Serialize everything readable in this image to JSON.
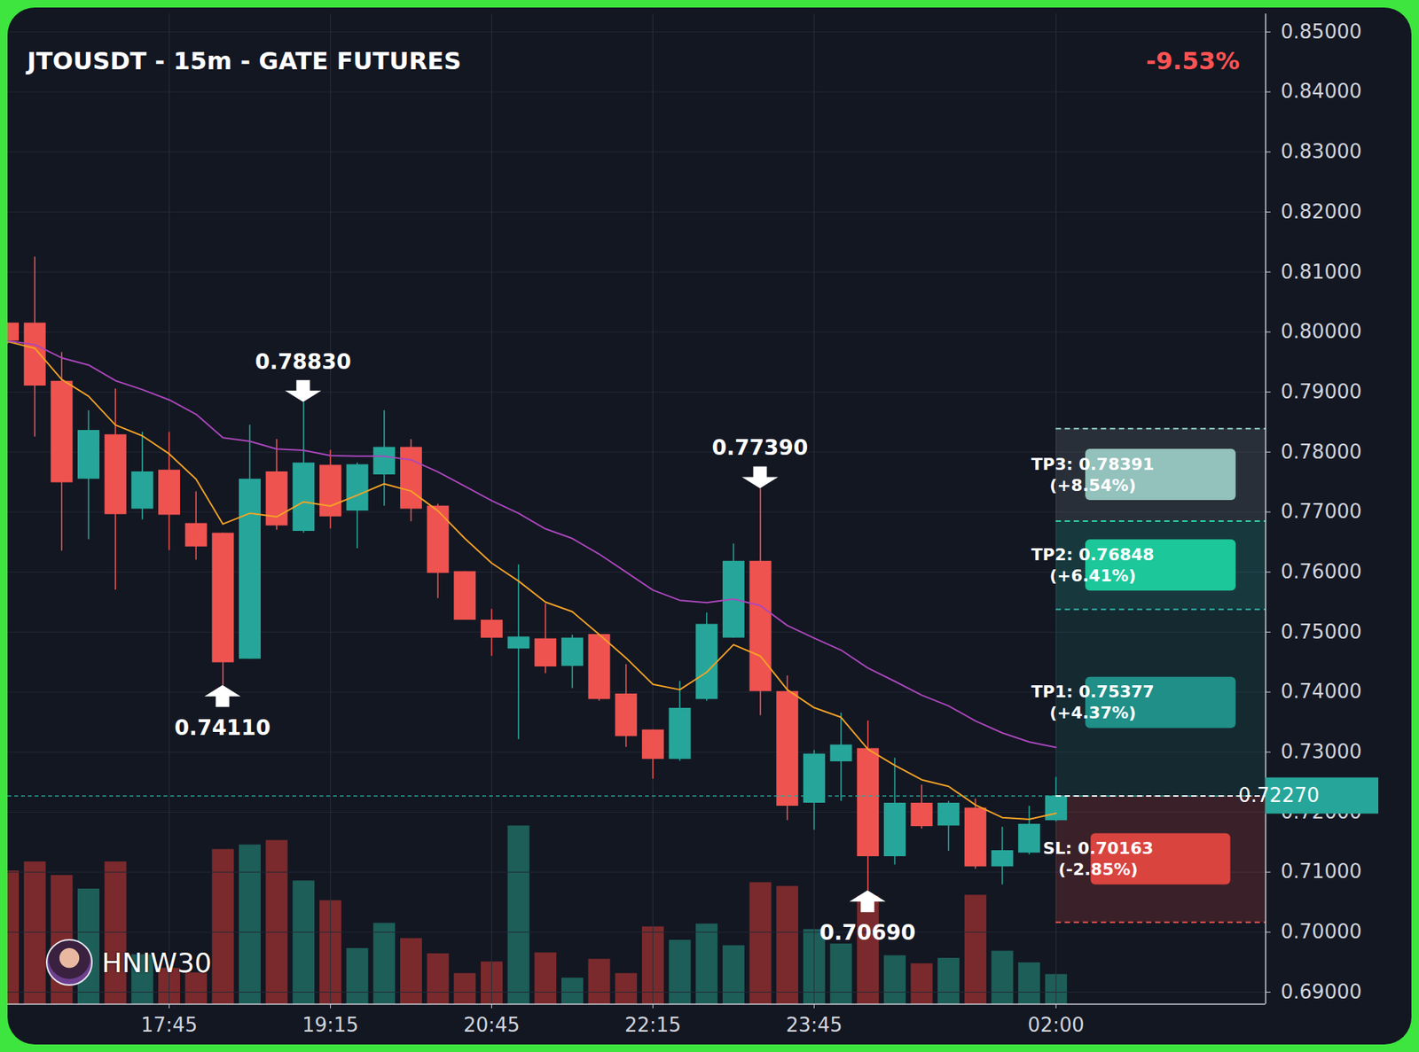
{
  "chart_data": {
    "type": "candlestick",
    "title": "JTOUSDT - 15m - GATE FUTURES",
    "change": -9.53,
    "change_label": "-9.53%",
    "x": [
      16.25,
      16.5,
      16.75,
      17,
      17.25,
      17.5,
      17.75,
      18,
      18.25,
      18.5,
      18.75,
      19,
      19.25,
      19.5,
      19.75,
      20,
      20.25,
      20.5,
      20.75,
      21,
      21.25,
      21.5,
      21.75,
      22,
      22.25,
      22.5,
      22.75,
      23,
      23.25,
      23.5,
      23.75,
      24,
      24.25,
      24.5,
      24.75,
      25,
      25.25,
      25.5,
      25.75,
      26
    ],
    "open": [
      0.8015,
      0.8015,
      0.7918,
      0.7755,
      0.7829,
      0.7705,
      0.777,
      0.7681,
      0.7665,
      0.7455,
      0.7767,
      0.7668,
      0.7778,
      0.7702,
      0.7762,
      0.7808,
      0.771,
      0.7601,
      0.752,
      0.7472,
      0.7489,
      0.7443,
      0.7496,
      0.7397,
      0.7337,
      0.7288,
      0.7388,
      0.749,
      0.7618,
      0.7401,
      0.7215,
      0.7284,
      0.7306,
      0.7126,
      0.7215,
      0.7177,
      0.7207,
      0.7109,
      0.7132,
      0.7186
    ],
    "high": [
      0.8015,
      0.8125,
      0.7966,
      0.7869,
      0.7905,
      0.7833,
      0.7833,
      0.7734,
      0.7665,
      0.7845,
      0.7821,
      0.7883,
      0.7803,
      0.7782,
      0.7869,
      0.7821,
      0.7713,
      0.7601,
      0.7538,
      0.7612,
      0.7547,
      0.7495,
      0.7496,
      0.7446,
      0.7337,
      0.7418,
      0.7532,
      0.7647,
      0.7739,
      0.7427,
      0.7303,
      0.7365,
      0.7352,
      0.729,
      0.7245,
      0.7218,
      0.7222,
      0.7175,
      0.721,
      0.7258
    ],
    "low": [
      0.798,
      0.7825,
      0.7635,
      0.7654,
      0.757,
      0.7687,
      0.7636,
      0.762,
      0.7411,
      0.7455,
      0.767,
      0.7665,
      0.7672,
      0.7639,
      0.771,
      0.7684,
      0.7556,
      0.752,
      0.746,
      0.7321,
      0.7431,
      0.7406,
      0.7385,
      0.7308,
      0.7255,
      0.7285,
      0.7385,
      0.749,
      0.7361,
      0.7186,
      0.717,
      0.7218,
      0.7069,
      0.7112,
      0.7172,
      0.7135,
      0.7105,
      0.7079,
      0.7129,
      0.7184
    ],
    "close": [
      0.7985,
      0.791,
      0.7749,
      0.7836,
      0.7696,
      0.7767,
      0.7695,
      0.7642,
      0.7449,
      0.7755,
      0.7677,
      0.7782,
      0.7692,
      0.7779,
      0.7808,
      0.7705,
      0.7598,
      0.752,
      0.749,
      0.7492,
      0.7442,
      0.749,
      0.7388,
      0.7326,
      0.7288,
      0.7373,
      0.7513,
      0.7618,
      0.7401,
      0.721,
      0.7297,
      0.7312,
      0.7126,
      0.7215,
      0.7176,
      0.7215,
      0.7109,
      0.7136,
      0.718,
      0.7227
    ],
    "volume": [
      148,
      158,
      143,
      128,
      158,
      55,
      40,
      35,
      172,
      177,
      182,
      137,
      115,
      62,
      90,
      73,
      56,
      34,
      47,
      198,
      57,
      29,
      50,
      34,
      86,
      71,
      89,
      65,
      135,
      131,
      83,
      67,
      120,
      54,
      45,
      51,
      121,
      59,
      46,
      33
    ],
    "volume_lim": [
      0,
      1100
    ],
    "series": [
      {
        "color": "#f7a325",
        "values": [
          0.7984,
          0.7973,
          0.7921,
          0.7893,
          0.7845,
          0.7827,
          0.7797,
          0.7755,
          0.768,
          0.7698,
          0.7692,
          0.7717,
          0.771,
          0.7728,
          0.7747,
          0.7735,
          0.7702,
          0.7656,
          0.7615,
          0.7585,
          0.755,
          0.7534,
          0.7496,
          0.7457,
          0.7413,
          0.7404,
          0.7433,
          0.7479,
          0.746,
          0.7404,
          0.7374,
          0.7358,
          0.7305,
          0.7278,
          0.7254,
          0.7243,
          0.7212,
          0.7191,
          0.7188,
          0.7198
        ]
      },
      {
        "color": "#ab47bc",
        "values": [
          0.7985,
          0.7979,
          0.7957,
          0.7945,
          0.7919,
          0.7904,
          0.7887,
          0.7863,
          0.7824,
          0.7818,
          0.7805,
          0.7803,
          0.7794,
          0.7793,
          0.7793,
          0.7787,
          0.7767,
          0.7743,
          0.7719,
          0.7698,
          0.7672,
          0.7656,
          0.763,
          0.76,
          0.757,
          0.7553,
          0.7549,
          0.7555,
          0.7544,
          0.7511,
          0.749,
          0.747,
          0.744,
          0.7418,
          0.7395,
          0.7377,
          0.7352,
          0.7332,
          0.7317,
          0.7308
        ]
      }
    ],
    "xlim": [
      16.25,
      27.95
    ],
    "xticks": [
      {
        "value": 17.75,
        "label": "17:45"
      },
      {
        "value": 19.25,
        "label": "19:15"
      },
      {
        "value": 20.75,
        "label": "20:45"
      },
      {
        "value": 22.25,
        "label": "22:15"
      },
      {
        "value": 23.75,
        "label": "23:45"
      },
      {
        "value": 26,
        "label": "02:00"
      }
    ],
    "ylim": [
      0.688,
      0.853
    ],
    "yticks": [
      {
        "value": 0.69,
        "label": "0.69000"
      },
      {
        "value": 0.7,
        "label": "0.70000"
      },
      {
        "value": 0.71,
        "label": "0.71000"
      },
      {
        "value": 0.72,
        "label": "0.72000"
      },
      {
        "value": 0.73,
        "label": "0.73000"
      },
      {
        "value": 0.74,
        "label": "0.74000"
      },
      {
        "value": 0.75,
        "label": "0.75000"
      },
      {
        "value": 0.76,
        "label": "0.76000"
      },
      {
        "value": 0.77,
        "label": "0.77000"
      },
      {
        "value": 0.78,
        "label": "0.78000"
      },
      {
        "value": 0.79,
        "label": "0.79000"
      },
      {
        "value": 0.8,
        "label": "0.80000"
      },
      {
        "value": 0.81,
        "label": "0.81000"
      },
      {
        "value": 0.82,
        "label": "0.82000"
      },
      {
        "value": 0.83,
        "label": "0.83000"
      },
      {
        "value": 0.84,
        "label": "0.84000"
      },
      {
        "value": 0.85,
        "label": "0.85000"
      }
    ],
    "grid": true,
    "last_price": {
      "value": 0.7227,
      "label": "0.72270"
    },
    "annotations": [
      {
        "x": 18.25,
        "value": 0.7411,
        "label": "0.74110",
        "marker": "arrow_up"
      },
      {
        "x": 19,
        "value": 0.7883,
        "label": "0.78830",
        "marker": "arrow_down"
      },
      {
        "x": 23.25,
        "value": 0.7739,
        "label": "0.77390",
        "marker": "arrow_down"
      },
      {
        "x": 24.25,
        "value": 0.7069,
        "label": "0.70690",
        "marker": "arrow_up"
      }
    ],
    "targets": [
      {
        "value": 0.75377,
        "lines": [
          "TP1: 0.75377",
          "(+4.37%)"
        ]
      },
      {
        "value": 0.76848,
        "lines": [
          "TP2: 0.76848",
          "(+6.41%)"
        ]
      },
      {
        "value": 0.78391,
        "lines": [
          "TP3: 0.78391",
          "(+8.54%)"
        ]
      }
    ],
    "stop_loss": {
      "value": 0.70163,
      "lines": [
        "SL: 0.70163",
        "(-2.85%)"
      ]
    },
    "watermark": "HNIW30"
  }
}
